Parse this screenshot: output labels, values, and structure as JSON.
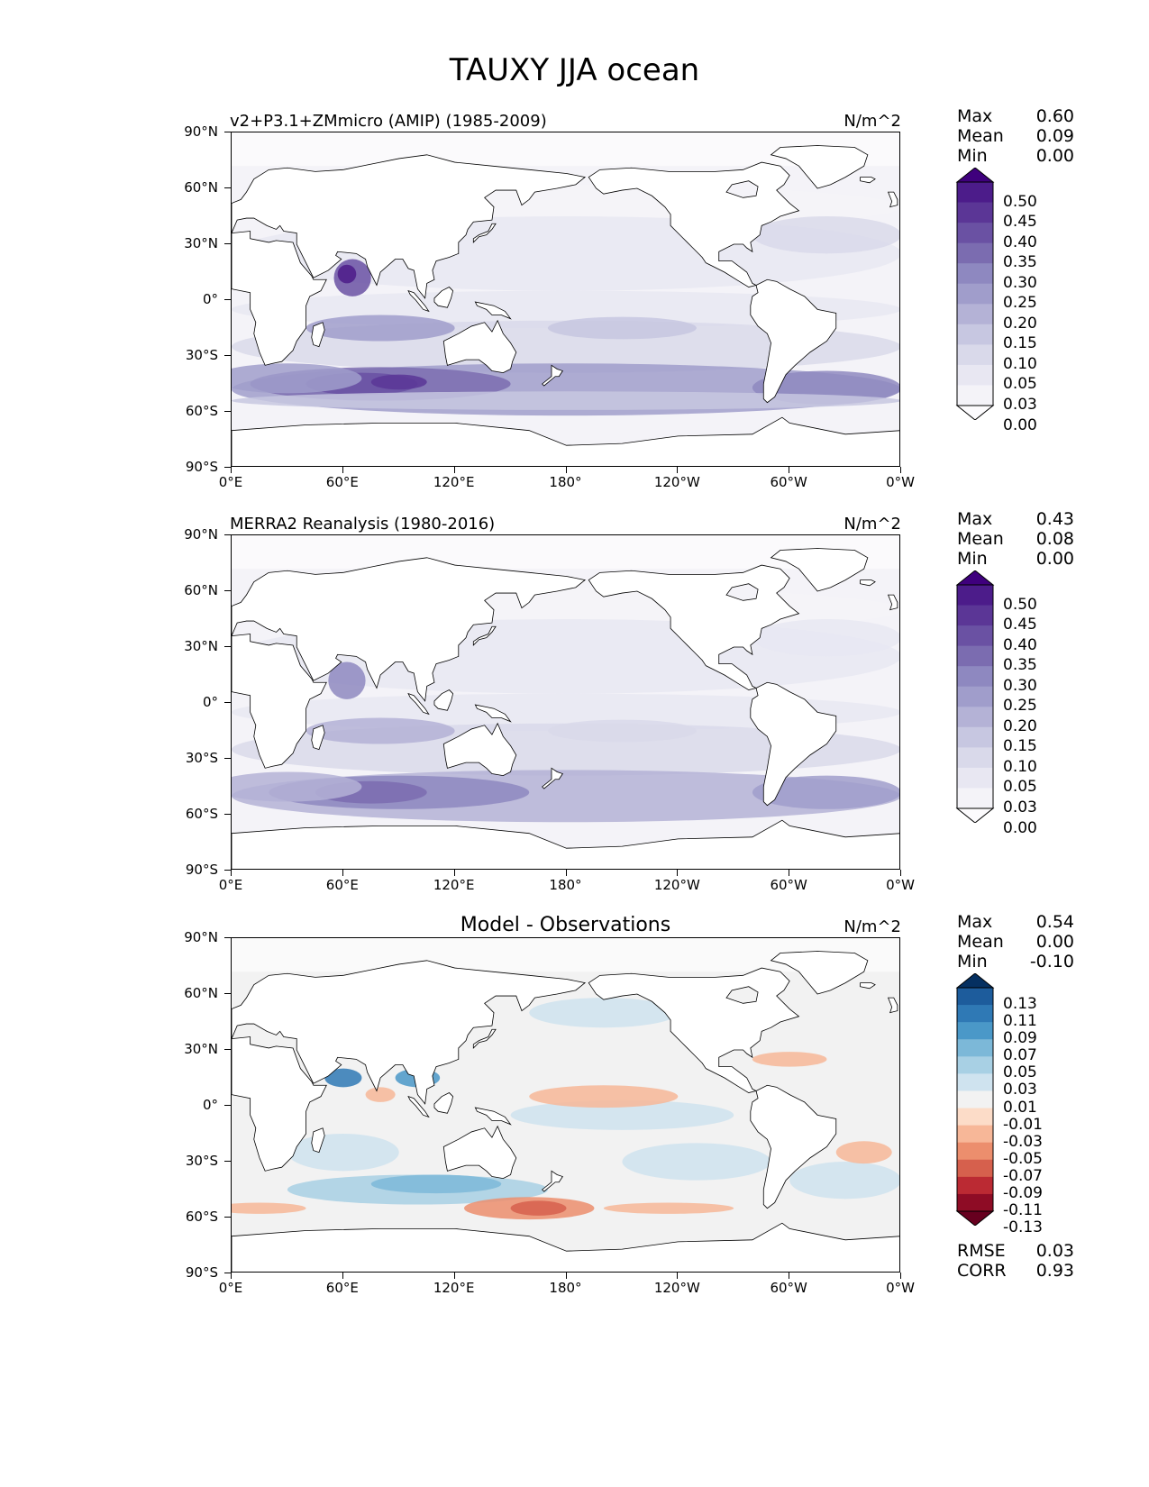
{
  "figure": {
    "title": "TAUXY JJA ocean"
  },
  "panels": [
    {
      "id": "model",
      "title_left": "v2+P3.1+ZMmicro (AMIP) (1985-2009)",
      "title_center": "",
      "units": "N/m^2",
      "stats": [
        {
          "label": "Max",
          "value": "0.60"
        },
        {
          "label": "Mean",
          "value": "0.09"
        },
        {
          "label": "Min",
          "value": "0.00"
        }
      ],
      "extra_stats": [],
      "colorbar_labels": [
        "0.50",
        "0.45",
        "0.40",
        "0.35",
        "0.30",
        "0.25",
        "0.20",
        "0.15",
        "0.10",
        "0.05",
        "0.03",
        "0.00"
      ],
      "colorbar_colors": [
        "#3f007d",
        "#4c1c8a",
        "#5b3696",
        "#6a51a3",
        "#7b6cb0",
        "#8e88c0",
        "#a09dcb",
        "#b4b2d6",
        "#c7c7e1",
        "#d9d9ea",
        "#e8e7f2",
        "#f4f3f8",
        "#fcfbfd"
      ]
    },
    {
      "id": "obs",
      "title_left": "MERRA2 Reanalysis (1980-2016)",
      "title_center": "",
      "units": "N/m^2",
      "stats": [
        {
          "label": "Max",
          "value": "0.43"
        },
        {
          "label": "Mean",
          "value": "0.08"
        },
        {
          "label": "Min",
          "value": "0.00"
        }
      ],
      "extra_stats": [],
      "colorbar_labels": [
        "0.50",
        "0.45",
        "0.40",
        "0.35",
        "0.30",
        "0.25",
        "0.20",
        "0.15",
        "0.10",
        "0.05",
        "0.03",
        "0.00"
      ],
      "colorbar_colors": [
        "#3f007d",
        "#4c1c8a",
        "#5b3696",
        "#6a51a3",
        "#7b6cb0",
        "#8e88c0",
        "#a09dcb",
        "#b4b2d6",
        "#c7c7e1",
        "#d9d9ea",
        "#e8e7f2",
        "#f4f3f8",
        "#fcfbfd"
      ]
    },
    {
      "id": "diff",
      "title_left": "",
      "title_center": "Model - Observations",
      "units": "N/m^2",
      "stats": [
        {
          "label": "Max",
          "value": "0.54"
        },
        {
          "label": "Mean",
          "value": "0.00"
        },
        {
          "label": "Min",
          "value": "-0.10"
        }
      ],
      "extra_stats": [
        {
          "label": "RMSE",
          "value": "0.03"
        },
        {
          "label": "CORR",
          "value": "0.93"
        }
      ],
      "colorbar_labels": [
        "0.13",
        "0.11",
        "0.09",
        "0.07",
        "0.05",
        "0.03",
        "0.01",
        "-0.01",
        "-0.03",
        "-0.05",
        "-0.07",
        "-0.09",
        "-0.11",
        "-0.13"
      ],
      "colorbar_colors": [
        "#053061",
        "#1d5c9c",
        "#2f79b5",
        "#4a98c8",
        "#7cb8d8",
        "#a8d0e4",
        "#cfe3ef",
        "#f2f2f2",
        "#fcdcc8",
        "#f7b798",
        "#ec8e6d",
        "#d6604d",
        "#bb2a33",
        "#8e0c25",
        "#67001f"
      ]
    }
  ],
  "axes": {
    "y_ticks": [
      "90°N",
      "60°N",
      "30°N",
      "0°",
      "30°S",
      "60°S",
      "90°S"
    ],
    "x_ticks": [
      "0°E",
      "60°E",
      "120°E",
      "180°",
      "120°W",
      "60°W",
      "0°W"
    ]
  },
  "chart_data": [
    {
      "type": "heatmap",
      "title": "v2+P3.1+ZMmicro (AMIP) (1985-2009)",
      "variable": "TAUXY",
      "season": "JJA",
      "region": "ocean",
      "units": "N/m^2",
      "xlim": [
        0,
        360
      ],
      "ylim": [
        -90,
        90
      ],
      "levels": [
        0.0,
        0.03,
        0.05,
        0.1,
        0.15,
        0.2,
        0.25,
        0.3,
        0.35,
        0.4,
        0.45,
        0.5
      ],
      "summary": {
        "max": 0.6,
        "mean": 0.09,
        "min": 0.0
      }
    },
    {
      "type": "heatmap",
      "title": "MERRA2 Reanalysis (1980-2016)",
      "variable": "TAUXY",
      "season": "JJA",
      "region": "ocean",
      "units": "N/m^2",
      "xlim": [
        0,
        360
      ],
      "ylim": [
        -90,
        90
      ],
      "levels": [
        0.0,
        0.03,
        0.05,
        0.1,
        0.15,
        0.2,
        0.25,
        0.3,
        0.35,
        0.4,
        0.45,
        0.5
      ],
      "summary": {
        "max": 0.43,
        "mean": 0.08,
        "min": 0.0
      }
    },
    {
      "type": "heatmap",
      "title": "Model - Observations",
      "variable": "TAUXY",
      "season": "JJA",
      "region": "ocean",
      "units": "N/m^2",
      "xlim": [
        0,
        360
      ],
      "ylim": [
        -90,
        90
      ],
      "levels": [
        -0.13,
        -0.11,
        -0.09,
        -0.07,
        -0.05,
        -0.03,
        -0.01,
        0.01,
        0.03,
        0.05,
        0.07,
        0.09,
        0.11,
        0.13
      ],
      "summary": {
        "max": 0.54,
        "mean": 0.0,
        "min": -0.1,
        "rmse": 0.03,
        "corr": 0.93
      }
    }
  ]
}
